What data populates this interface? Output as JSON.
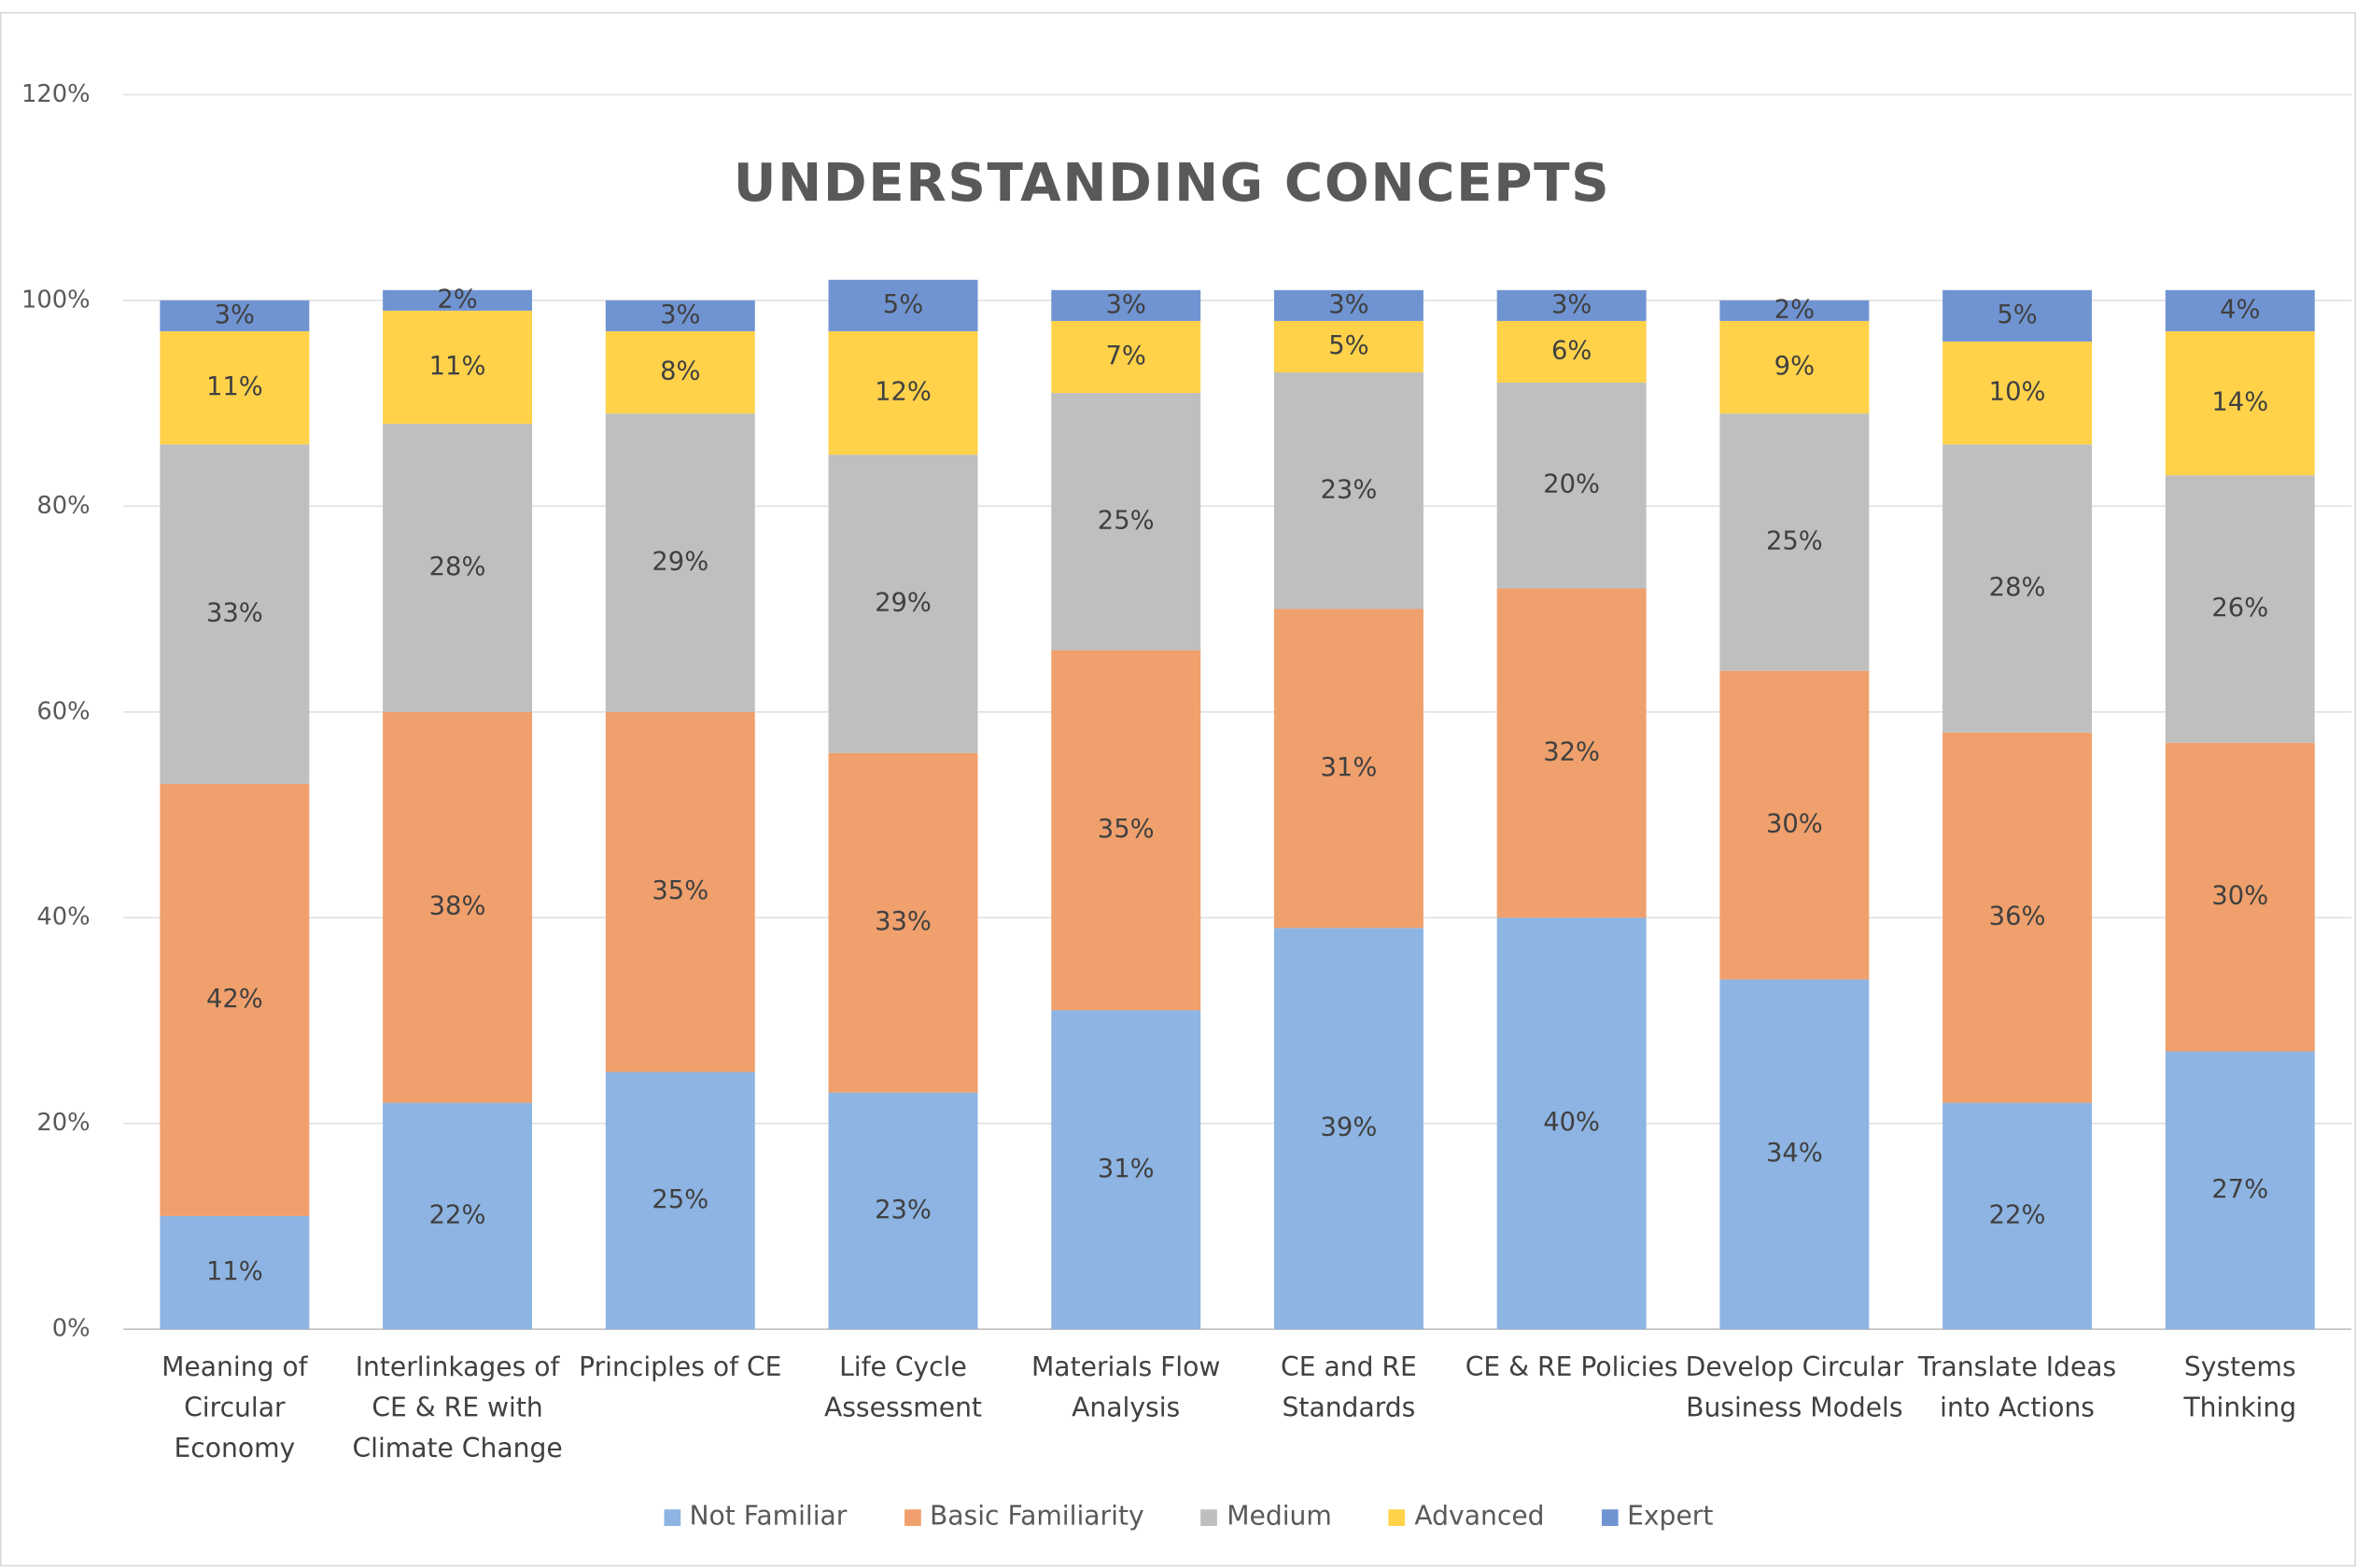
{
  "chart_data": {
    "type": "stacked_bar",
    "title": "UNDERSTANDING CONCEPTS",
    "categories": [
      "Meaning of Circular Economy",
      "Interlinkages of CE & RE with Climate Change",
      "Principles of CE",
      "Life Cycle Assessment",
      "Materials Flow Analysis",
      "CE and RE Standards",
      "CE & RE Policies",
      "Develop Circular Business Models",
      "Translate Ideas into Actions",
      "Systems Thinking"
    ],
    "series": [
      {
        "name": "Not Familiar",
        "color": "#8db4e2",
        "values": [
          11,
          22,
          25,
          23,
          31,
          39,
          40,
          34,
          22,
          27
        ],
        "value_labels": [
          "11%",
          "22%",
          "25%",
          "23%",
          "31%",
          "39%",
          "40%",
          "34%",
          "22%",
          "27%"
        ]
      },
      {
        "name": "Basic Familiarity",
        "color": "#f0a06c",
        "values": [
          42,
          38,
          35,
          33,
          35,
          31,
          32,
          30,
          36,
          30
        ],
        "value_labels": [
          "42%",
          "38%",
          "35%",
          "33%",
          "35%",
          "31%",
          "32%",
          "30%",
          "36%",
          "30%"
        ]
      },
      {
        "name": "Medium",
        "color": "#bfbfbf",
        "values": [
          33,
          28,
          29,
          29,
          25,
          23,
          20,
          25,
          28,
          26
        ],
        "value_labels": [
          "33%",
          "28%",
          "29%",
          "29%",
          "25%",
          "23%",
          "20%",
          "25%",
          "28%",
          "26%"
        ]
      },
      {
        "name": "Advanced",
        "color": "#ffd24a",
        "values": [
          11,
          11,
          8,
          12,
          7,
          5,
          6,
          9,
          10,
          14
        ],
        "value_labels": [
          "11%",
          "11%",
          "8%",
          "12%",
          "7%",
          "5%",
          "6%",
          "9%",
          "10%",
          "14%"
        ]
      },
      {
        "name": "Expert",
        "color": "#7094d2",
        "values": [
          3,
          2,
          3,
          5,
          3,
          3,
          3,
          2,
          5,
          4
        ],
        "value_labels": [
          "3%",
          "2%",
          "3%",
          "5%",
          "3%",
          "3%",
          "3%",
          "2%",
          "5%",
          "4%"
        ]
      }
    ],
    "ylim": [
      0,
      120
    ],
    "yticks": [
      {
        "value": 0,
        "label": "0%"
      },
      {
        "value": 20,
        "label": "20%"
      },
      {
        "value": 40,
        "label": "40%"
      },
      {
        "value": 60,
        "label": "60%"
      },
      {
        "value": 80,
        "label": "80%"
      },
      {
        "value": 100,
        "label": "100%"
      },
      {
        "value": 120,
        "label": "120%"
      }
    ],
    "grid": true,
    "legend": "bottom"
  }
}
